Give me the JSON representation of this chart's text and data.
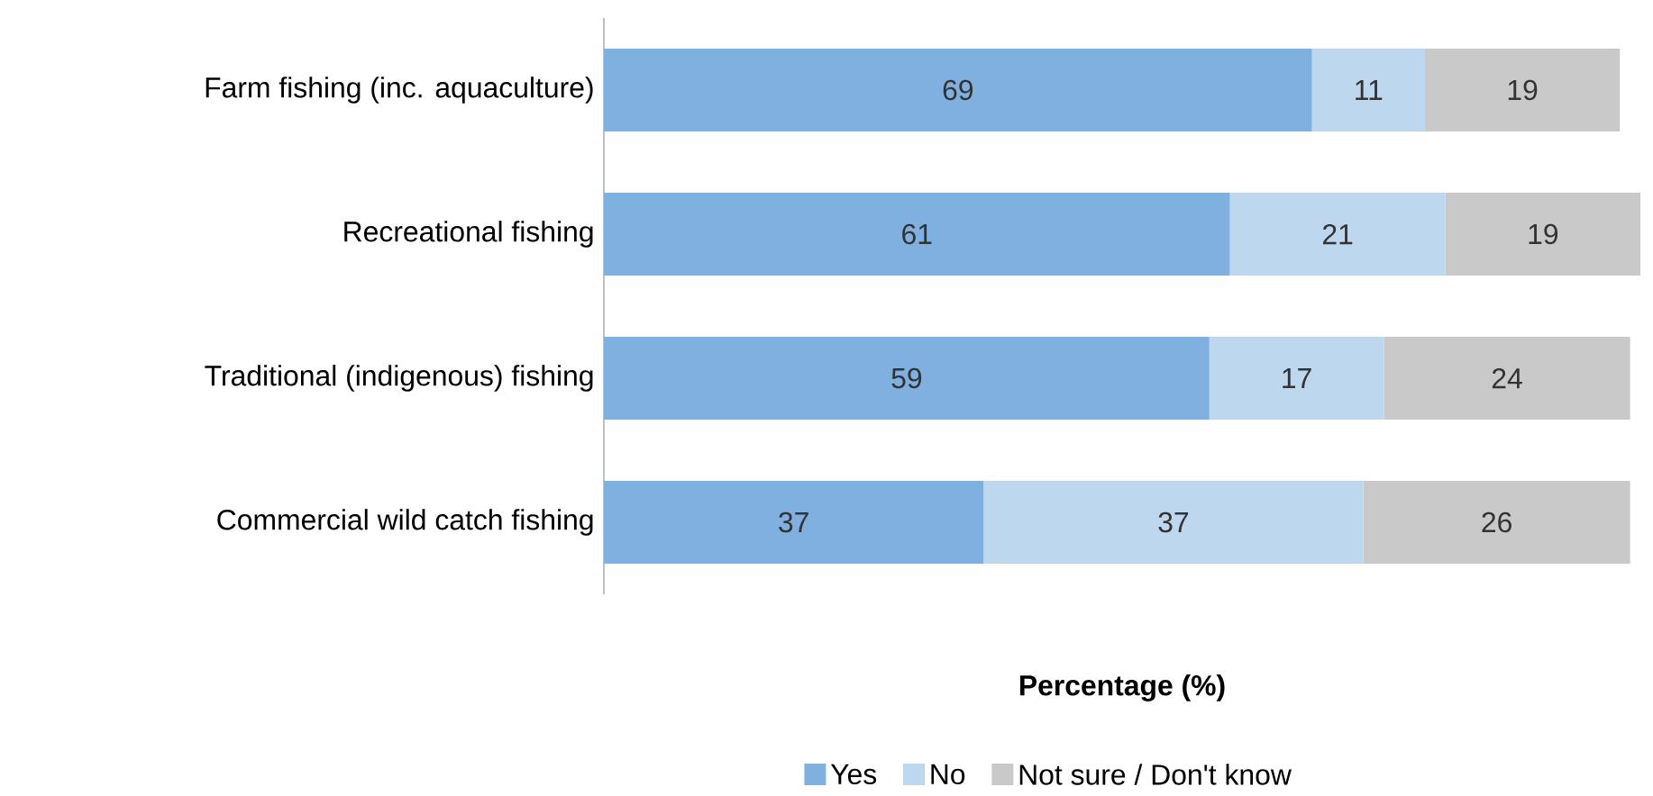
{
  "chart_data": {
    "type": "bar",
    "orientation": "horizontal",
    "stacked": true,
    "data_labels": true,
    "legend": "bottom",
    "xlabel": "Percentage (%)",
    "categories": [
      "Farm fishing (inc. aquaculture)",
      "Recreational fishing",
      "Traditional (indigenous) fishing",
      "Commercial wild catch fishing"
    ],
    "series": [
      {
        "name": "Yes",
        "color": "#7fb0e0",
        "values": [
          69,
          61,
          59,
          37
        ]
      },
      {
        "name": "No",
        "color": "#bdd7ee",
        "values": [
          11,
          21,
          17,
          37
        ]
      },
      {
        "name": "Not sure / Don't know",
        "color": "#c9c9c9",
        "values": [
          19,
          19,
          24,
          26
        ]
      }
    ]
  }
}
